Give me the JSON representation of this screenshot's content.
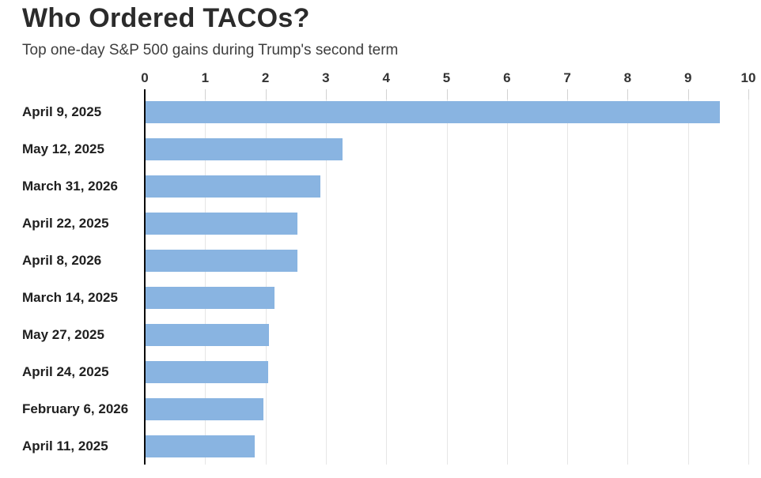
{
  "header": {
    "title": "Who Ordered TACOs?",
    "subtitle": "Top one-day S&P 500 gains during Trump's second term"
  },
  "chart_data": {
    "type": "bar",
    "orientation": "horizontal",
    "title": "Who Ordered TACOs?",
    "subtitle": "Top one-day S&P 500 gains during Trump's second term",
    "categories": [
      "April 9, 2025",
      "May 12, 2025",
      "March 31, 2026",
      "April 22, 2025",
      "April 8, 2026",
      "March 14, 2025",
      "May 27, 2025",
      "April 24, 2025",
      "February 6, 2026",
      "April 11, 2025"
    ],
    "values": [
      9.52,
      3.26,
      2.9,
      2.52,
      2.51,
      2.13,
      2.05,
      2.03,
      1.95,
      1.81
    ],
    "xlabel": "",
    "ylabel": "",
    "xlim": [
      0,
      10
    ],
    "xticks": [
      0,
      1,
      2,
      3,
      4,
      5,
      6,
      7,
      8,
      9,
      10
    ],
    "grid": true,
    "legend": "none",
    "colors": {
      "bar": "#89B4E1",
      "gridline": "#e6e6e6",
      "tick_mark": "#d2d2d2",
      "axis_line": "#0a0a0a",
      "tick_label": "#333333",
      "category_label": "#1f1f1f",
      "title": "#2b2b2b",
      "subtitle": "#3d3d3d"
    }
  }
}
